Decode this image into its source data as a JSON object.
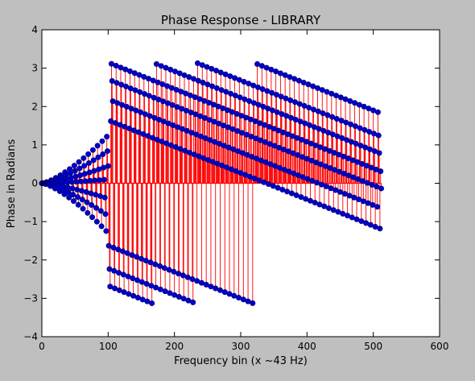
{
  "chart_data": {
    "type": "stem",
    "title": "Phase Response - LIBRARY",
    "xlabel": "Frequency bin (x ~43 Hz)",
    "ylabel": "Phase in Radians",
    "xlim": [
      0,
      600
    ],
    "ylim": [
      -4,
      4
    ],
    "xticks": [
      "0",
      "100",
      "200",
      "300",
      "400",
      "500",
      "600"
    ],
    "yticks": [
      "−4",
      "−3",
      "−2",
      "−1",
      "0",
      "1",
      "2",
      "3",
      "4"
    ],
    "stem_color": "#ff0000",
    "marker_color": "#0000cc",
    "marker_edge_color": "#000066",
    "baseline_color": "#ff0000",
    "background": "#bfbfbf",
    "plot_background": "#ffffff",
    "bins": 512,
    "period": 7,
    "transition_bin": 100,
    "low_region": {
      "x_range": [
        0,
        100
      ],
      "curve_end_values": [
        1.25,
        0.85,
        0.45,
        0.1,
        -0.4,
        -0.85,
        -1.3
      ]
    },
    "high_region": {
      "x_range": [
        104,
        512
      ],
      "phase_slope_per_bin": -0.0069,
      "curve_start_values": [
        3.12,
        2.68,
        2.16,
        -1.65,
        -2.25,
        -2.7,
        1.62
      ]
    }
  }
}
